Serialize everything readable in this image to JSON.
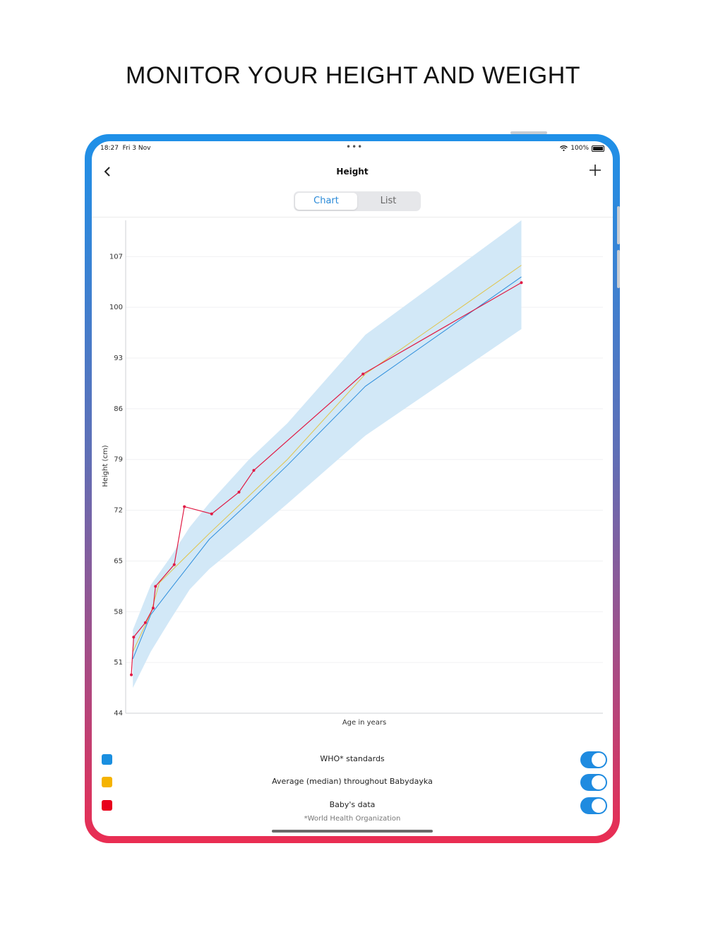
{
  "headline": "MONITOR YOUR HEIGHT AND WEIGHT",
  "status": {
    "time": "18:27",
    "date": "Fri 3 Nov",
    "battery": "100%"
  },
  "nav": {
    "back_icon": "chevron-left-icon",
    "title": "Height",
    "add_icon": "plus-icon"
  },
  "tabs": {
    "chart": "Chart",
    "list": "List",
    "active": "Chart"
  },
  "chart_data": {
    "type": "line",
    "xlabel": "Age in years",
    "ylabel": "Height (cm)",
    "ylim": [
      44,
      112
    ],
    "xlim": [
      0,
      5.5
    ],
    "yticks": [
      44,
      51,
      58,
      65,
      72,
      79,
      86,
      93,
      100,
      107
    ],
    "grid": true,
    "band": {
      "color": "#d2e8f7",
      "x": [
        0.02,
        0.25,
        0.5,
        0.75,
        1.0,
        1.5,
        2.0,
        3.0,
        5.0
      ],
      "upper": [
        55.5,
        61.7,
        65.5,
        69.7,
        73.0,
        78.9,
        84.0,
        96.2,
        112.0
      ],
      "lower": [
        47.5,
        52.5,
        56.9,
        61.1,
        63.9,
        68.3,
        72.9,
        82.3,
        97.0
      ]
    },
    "series": [
      {
        "name": "WHO* standards",
        "color": "#2f8fdc",
        "x": [
          0.02,
          0.25,
          0.5,
          1.0,
          1.5,
          2.0,
          3.0,
          5.0
        ],
        "y": [
          51.5,
          57.6,
          61.1,
          68.0,
          73.0,
          78.2,
          89.1,
          104.2
        ]
      },
      {
        "name": "Average (median) throughout Babydayka",
        "color": "#e0c44a",
        "x": [
          0.02,
          0.25,
          0.36,
          1.0,
          1.5,
          2.0,
          3.0,
          5.0
        ],
        "y": [
          52.5,
          57.8,
          62.0,
          68.8,
          73.9,
          79.0,
          90.8,
          105.8
        ]
      },
      {
        "name": "Baby's data",
        "color": "#e01a44",
        "points": true,
        "x": [
          0.0,
          0.03,
          0.18,
          0.28,
          0.31,
          0.55,
          0.68,
          1.03,
          1.38,
          1.57,
          2.97,
          5.0
        ],
        "y": [
          49.3,
          54.5,
          56.5,
          58.5,
          61.5,
          64.5,
          72.5,
          71.5,
          74.5,
          77.5,
          90.8,
          103.4
        ]
      }
    ]
  },
  "legend": [
    {
      "label": "WHO* standards",
      "color": "#1a8fe0",
      "enabled": true
    },
    {
      "label": "Average (median) throughout Babydayka",
      "color": "#f5b300",
      "enabled": true
    },
    {
      "label": "Baby's data",
      "color": "#e8001c",
      "enabled": true
    }
  ],
  "footnote": "*World Health Organization"
}
